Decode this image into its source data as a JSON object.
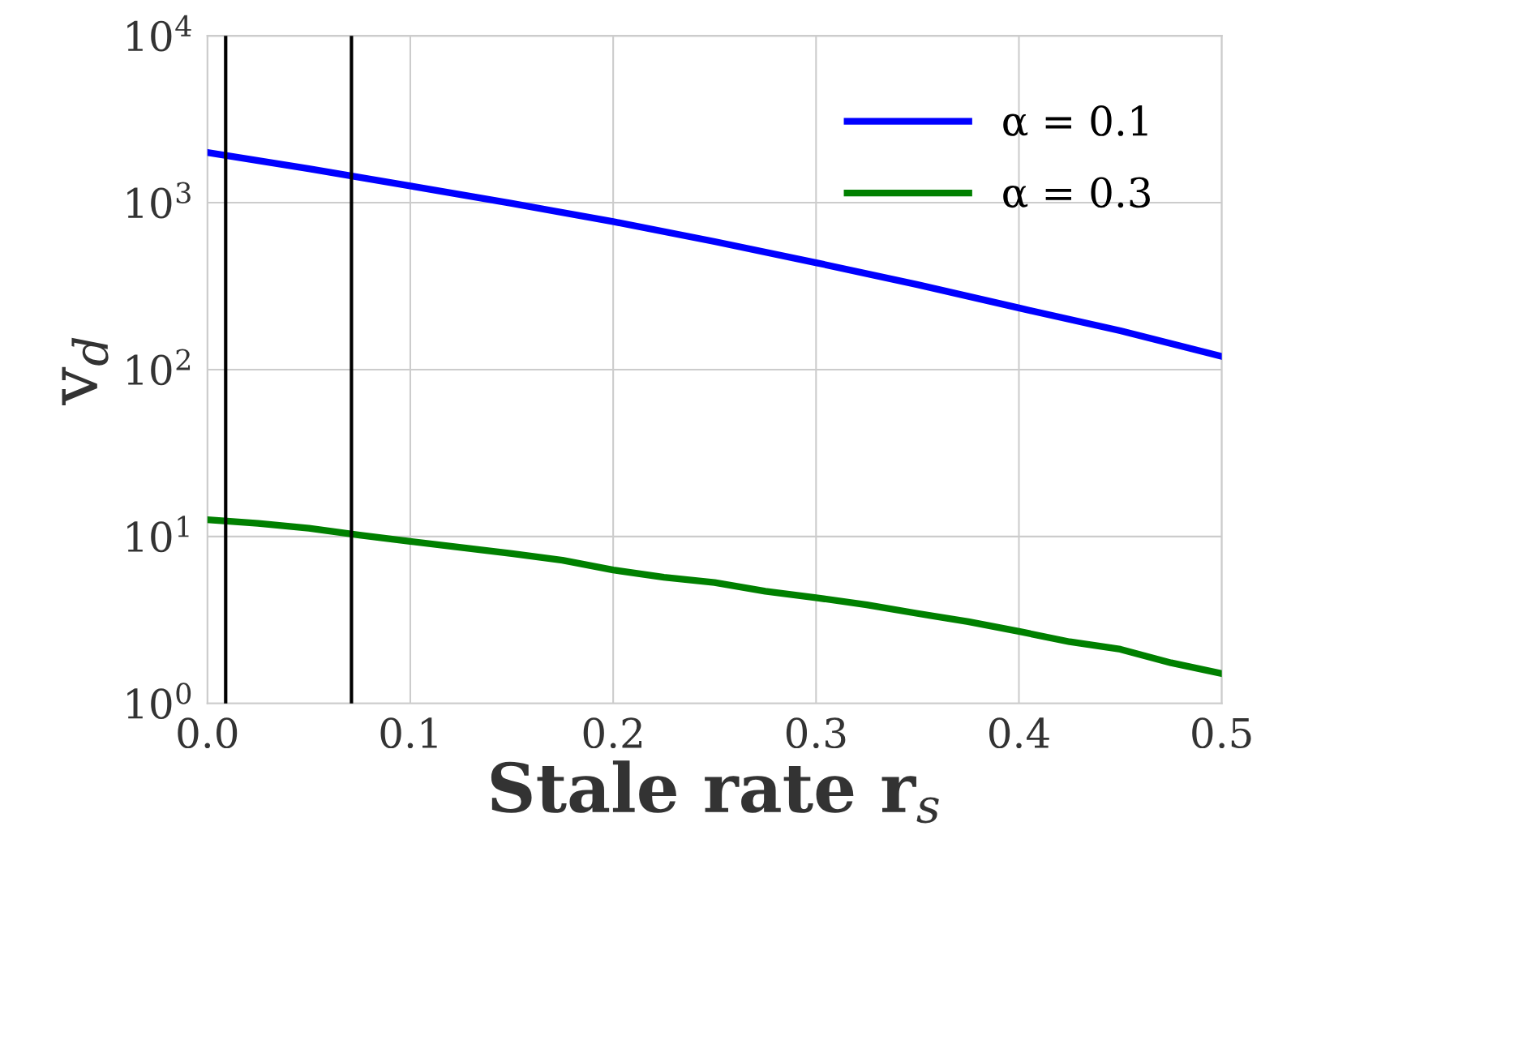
{
  "chart_data": {
    "type": "line",
    "xlabel": "Stale rate r$_{s}$",
    "ylabel": "v$_{d}$",
    "log": "y",
    "grid": true,
    "legend": "top right",
    "line_style": "solid",
    "marker": "none",
    "xlim": [
      0,
      0.5
    ],
    "xticks": [
      {
        "value": 0,
        "label": "0.0"
      },
      0.1,
      0.2,
      0.3,
      0.4,
      0.5
    ],
    "ylim": [
      1,
      10000
    ],
    "yticks": [
      {
        "value": 1,
        "label": "10$^{0}$"
      },
      {
        "value": 10,
        "label": "10$^{1}$"
      },
      {
        "value": 100,
        "label": "10$^{2}$"
      },
      {
        "value": 1000,
        "label": "10$^{3}$"
      },
      {
        "value": 10000,
        "label": "10$^{4}$"
      }
    ],
    "x": [
      0,
      0.025,
      0.05,
      0.075,
      0.1,
      0.125,
      0.15,
      0.175,
      0.2,
      0.225,
      0.25,
      0.275,
      0.3,
      0.325,
      0.35,
      0.375,
      0.4,
      0.425,
      0.45,
      0.475,
      0.5
    ],
    "series": [
      {
        "name": "α = 0.1",
        "color": "#0000ff",
        "x": [
          0,
          0.05,
          0.1,
          0.15,
          0.2,
          0.25,
          0.3,
          0.35,
          0.4,
          0.45,
          0.5
        ],
        "values": [
          2000,
          1600,
          1260,
          990,
          770,
          585,
          437,
          323,
          234,
          171,
          120
        ]
      },
      {
        "name": "α = 0.3",
        "color": "#008000",
        "values": [
          12.6,
          12.0,
          11.2,
          10.2,
          9.35,
          8.6,
          7.9,
          7.2,
          6.3,
          5.7,
          5.3,
          4.7,
          4.3,
          3.9,
          3.46,
          3.09,
          2.7,
          2.34,
          2.11,
          1.75,
          1.51
        ]
      }
    ],
    "ref_lines": [
      {
        "axis": "x",
        "value": 0.009,
        "color": "#000000"
      },
      {
        "axis": "x",
        "value": 0.071,
        "color": "#000000"
      }
    ]
  }
}
